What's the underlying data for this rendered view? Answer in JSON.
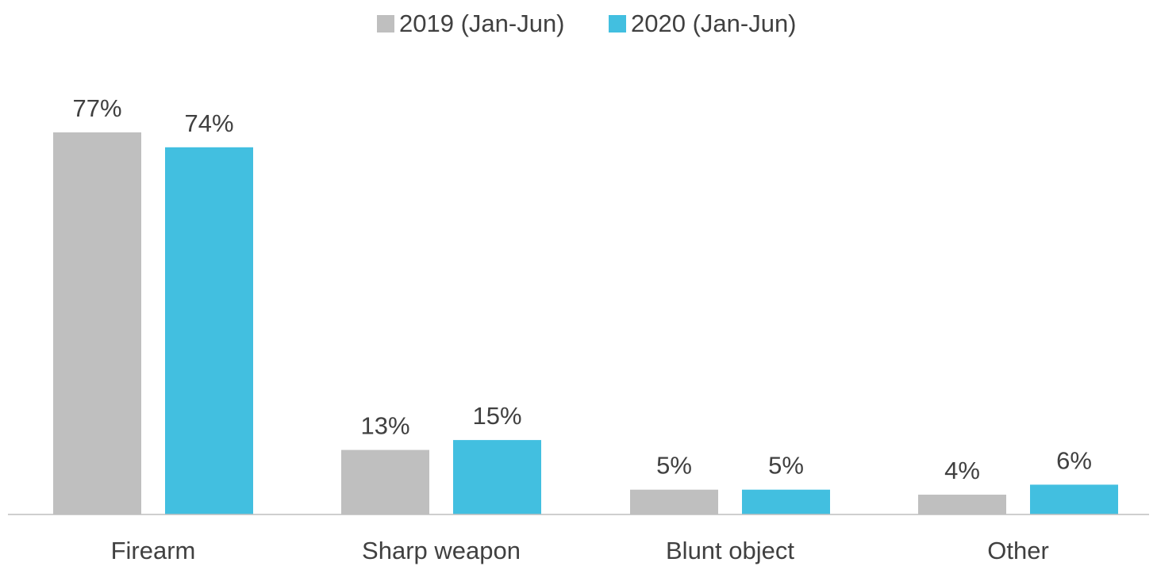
{
  "chart_data": {
    "type": "bar",
    "title": "",
    "xlabel": "",
    "ylabel": "",
    "ylim": [
      0,
      77
    ],
    "grid": false,
    "legend_position": "top-center",
    "value_suffix": "%",
    "categories": [
      "Firearm",
      "Sharp weapon",
      "Blunt object",
      "Other"
    ],
    "series": [
      {
        "name": "2019 (Jan-Jun)",
        "color": "#BFBFBF",
        "values": [
          77,
          13,
          5,
          4
        ],
        "labels": [
          "77%",
          "13%",
          "5%",
          "4%"
        ]
      },
      {
        "name": "2020 (Jan-Jun)",
        "color": "#42BFE0",
        "values": [
          74,
          15,
          5,
          6
        ],
        "labels": [
          "74%",
          "15%",
          "5%",
          "6%"
        ]
      }
    ],
    "axis_line_color": "#BFBFBF"
  }
}
